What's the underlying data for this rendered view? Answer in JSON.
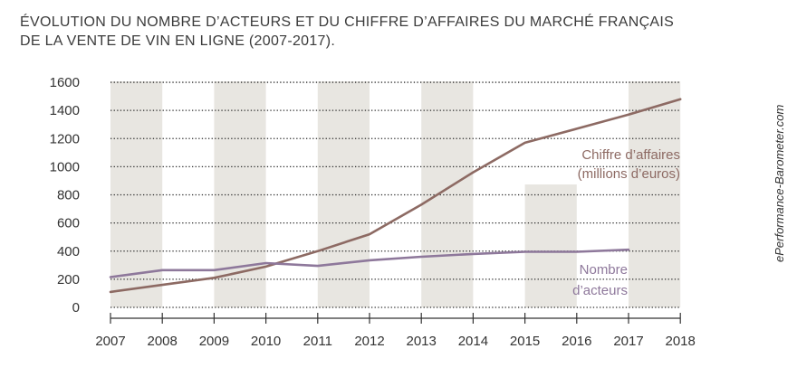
{
  "chart_data": {
    "type": "line",
    "title_line1": "ÉVOLUTION DU NOMBRE D’ACTEURS ET DU CHIFFRE D’AFFAIRES DU MARCHÉ FRANÇAIS",
    "title_line2": "DE LA VENTE DE VIN EN LIGNE (2007-2017).",
    "source": "ePerformance-Barometer.com",
    "xlabel": "",
    "ylabel": "",
    "ylim": [
      0,
      1600
    ],
    "yticks": [
      0,
      200,
      400,
      600,
      800,
      1000,
      1200,
      1400,
      1600
    ],
    "xticks": [
      "2007",
      "2008",
      "2009",
      "2010",
      "2011",
      "2012",
      "2013",
      "2014",
      "2015",
      "2016",
      "2017",
      "2018"
    ],
    "grid": "horizontal dotted",
    "series": [
      {
        "name": "Chiffre d’affaires (millions d’euros)",
        "name_lines": [
          "Chiffre d’affaires",
          "(millions d’euros)"
        ],
        "color": "#8d6a63",
        "x": [
          2007,
          2008,
          2009,
          2010,
          2011,
          2012,
          2013,
          2014,
          2015,
          2016,
          2017,
          2018
        ],
        "y": [
          110,
          160,
          210,
          290,
          400,
          520,
          730,
          960,
          1170,
          1270,
          1370,
          1480
        ]
      },
      {
        "name": "Nombre d’acteurs",
        "name_lines": [
          "Nombre",
          "d’acteurs"
        ],
        "color": "#8e789b",
        "x": [
          2007,
          2008,
          2009,
          2010,
          2011,
          2012,
          2013,
          2014,
          2015,
          2016,
          2017
        ],
        "y": [
          215,
          265,
          265,
          315,
          295,
          335,
          360,
          380,
          395,
          395,
          410
        ]
      }
    ]
  }
}
